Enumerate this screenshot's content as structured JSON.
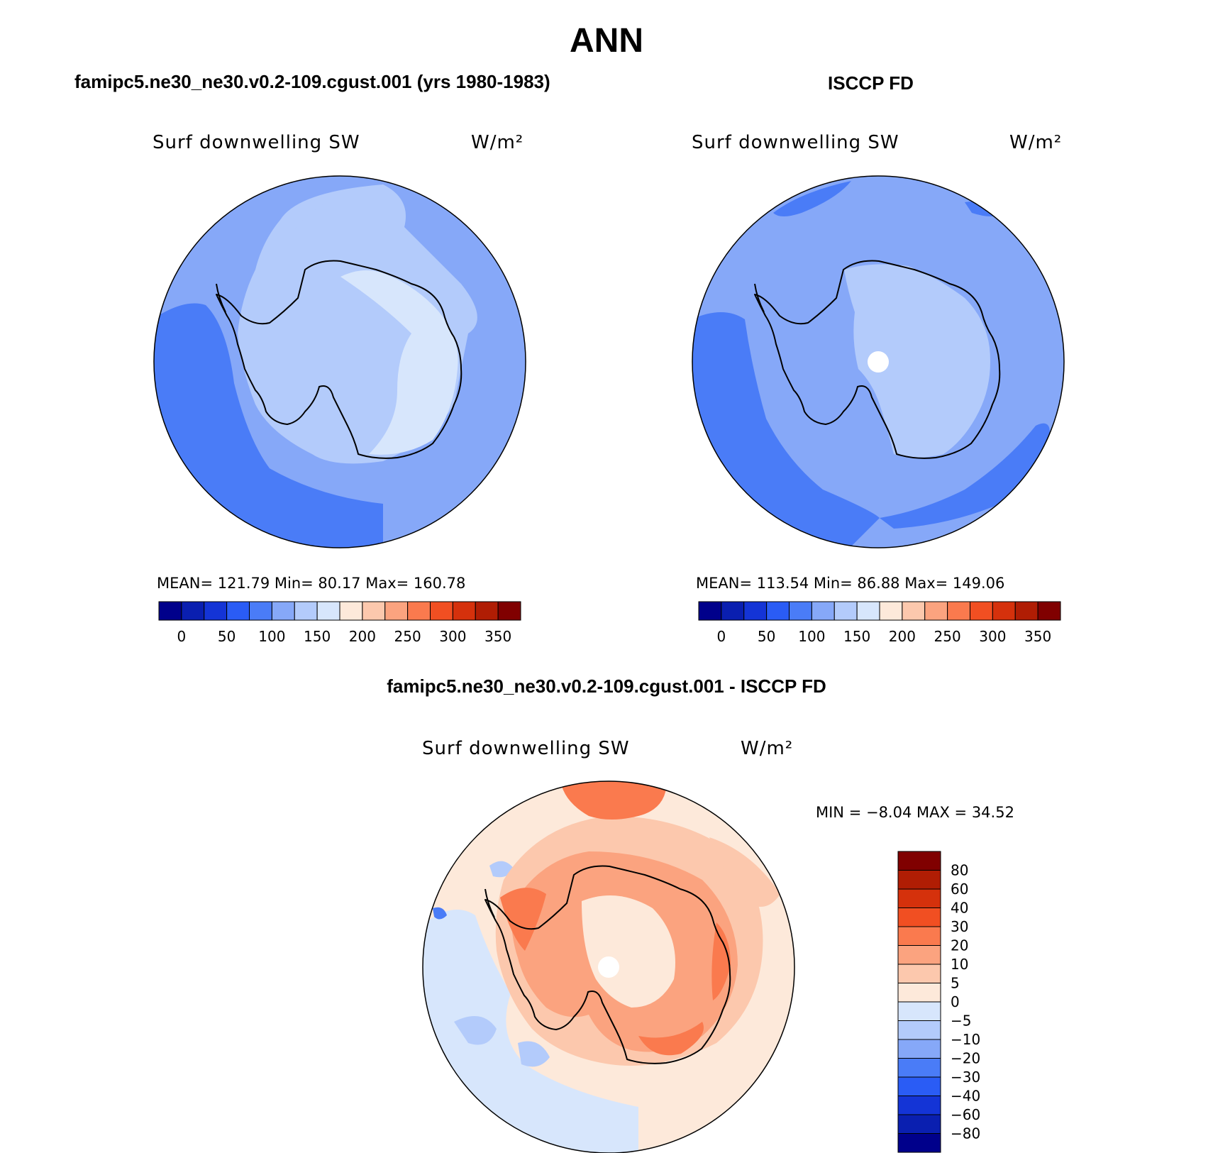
{
  "title": "ANN",
  "colors": {
    "blue_base": "#86a8f8",
    "blue_dark": "#4a7cf7",
    "blue_light": "#b3cbfb",
    "blue_pale": "#d7e6fc",
    "white_hole": "#ffffff",
    "coast": "#000000"
  },
  "panels": {
    "model": {
      "heading": "famipc5.ne30_ne30.v0.2-109.cgust.001 (yrs 1980-1983)",
      "variable": "Surf  downwelling  SW",
      "units": "W/m²",
      "stats": "MEAN=  121.79    Min=    80.17    Max=  160.78"
    },
    "obs": {
      "heading": "ISCCP FD",
      "variable": "Surf  downwelling  SW",
      "units": "W/m²",
      "stats": "MEAN=  113.54    Min=    86.88    Max=  149.06"
    },
    "diff": {
      "heading": "famipc5.ne30_ne30.v0.2-109.cgust.001 - ISCCP FD",
      "variable": "Surf  downwelling  SW",
      "units": "W/m²",
      "minmax": "MIN  =    −8.04  MAX  =    34.52"
    }
  },
  "horizontal_colorbar": {
    "colors": [
      "#00008b",
      "#0a1fb0",
      "#1434d6",
      "#2a5cf5",
      "#4a7cf7",
      "#86a8f8",
      "#b3cbfb",
      "#d7e6fc",
      "#fde9da",
      "#fcc8ad",
      "#fba37f",
      "#fa7a4e",
      "#f14f22",
      "#d5310c",
      "#b01d04",
      "#800000"
    ],
    "tick_labels": [
      "0",
      "50",
      "100",
      "150",
      "200",
      "250",
      "300",
      "350"
    ]
  },
  "vertical_colorbar": {
    "colors_top_to_bottom": [
      "#800000",
      "#b01d04",
      "#d5310c",
      "#f14f22",
      "#fa7a4e",
      "#fba37f",
      "#fcc8ad",
      "#fde9da",
      "#d7e6fc",
      "#b3cbfb",
      "#86a8f8",
      "#4a7cf7",
      "#2a5cf5",
      "#1434d6",
      "#0a1fb0",
      "#00008b"
    ],
    "tick_labels": [
      "80",
      "60",
      "40",
      "30",
      "20",
      "10",
      "5",
      "0",
      "−5",
      "−10",
      "−20",
      "−30",
      "−40",
      "−60",
      "−80"
    ]
  }
}
